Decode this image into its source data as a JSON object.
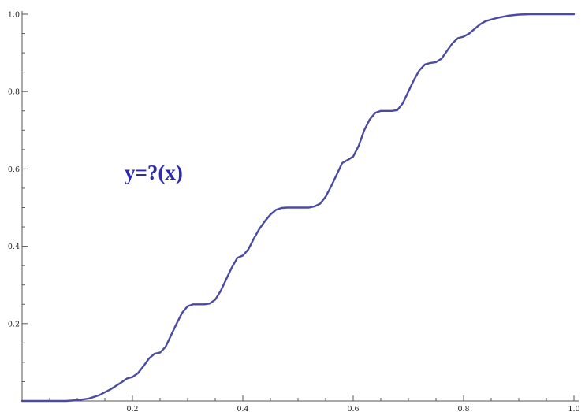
{
  "chart_data": {
    "type": "line",
    "title": "",
    "xlabel": "",
    "ylabel": "",
    "xlim": [
      0,
      1
    ],
    "ylim": [
      0,
      1
    ],
    "grid": false,
    "x_ticks_labeled": [
      0.2,
      0.4,
      0.6,
      0.8,
      1.0
    ],
    "x_tick_labels": [
      "0.2",
      "0.4",
      "0.6",
      "0.8",
      "1.0"
    ],
    "y_ticks_labeled": [
      0.2,
      0.4,
      0.6,
      0.8,
      1.0
    ],
    "y_tick_labels": [
      "0.2",
      "0.4",
      "0.6",
      "0.8",
      "1.0"
    ],
    "minor_tick_step": 0.05,
    "annotation": "y=?(x)",
    "series": [
      {
        "color": "#4b4ba0",
        "x": [
          0,
          0.08,
          0.1,
          0.12,
          0.14,
          0.16,
          0.18,
          0.19,
          0.2,
          0.21,
          0.22,
          0.23,
          0.24,
          0.25,
          0.26,
          0.27,
          0.28,
          0.29,
          0.3,
          0.31,
          0.32,
          0.33,
          0.34,
          0.35,
          0.36,
          0.37,
          0.38,
          0.39,
          0.4,
          0.41,
          0.42,
          0.43,
          0.44,
          0.45,
          0.46,
          0.47,
          0.48,
          0.5,
          0.52,
          0.53,
          0.54,
          0.55,
          0.56,
          0.57,
          0.58,
          0.59,
          0.6,
          0.61,
          0.62,
          0.63,
          0.64,
          0.65,
          0.66,
          0.67,
          0.68,
          0.69,
          0.7,
          0.71,
          0.72,
          0.73,
          0.74,
          0.75,
          0.76,
          0.77,
          0.78,
          0.79,
          0.8,
          0.81,
          0.82,
          0.83,
          0.84,
          0.86,
          0.88,
          0.9,
          0.92,
          0.95,
          1.0
        ],
        "y": [
          0,
          0.0,
          0.002,
          0.006,
          0.015,
          0.03,
          0.048,
          0.058,
          0.062,
          0.072,
          0.09,
          0.11,
          0.122,
          0.125,
          0.14,
          0.17,
          0.2,
          0.228,
          0.245,
          0.25,
          0.25,
          0.25,
          0.252,
          0.262,
          0.285,
          0.315,
          0.345,
          0.37,
          0.376,
          0.392,
          0.42,
          0.445,
          0.465,
          0.482,
          0.494,
          0.499,
          0.5,
          0.5,
          0.5,
          0.503,
          0.51,
          0.528,
          0.555,
          0.585,
          0.615,
          0.623,
          0.632,
          0.66,
          0.7,
          0.728,
          0.745,
          0.75,
          0.75,
          0.75,
          0.752,
          0.77,
          0.8,
          0.83,
          0.855,
          0.87,
          0.874,
          0.876,
          0.885,
          0.905,
          0.925,
          0.938,
          0.942,
          0.95,
          0.962,
          0.974,
          0.982,
          0.99,
          0.996,
          0.999,
          1.0,
          1.0,
          1.0
        ]
      }
    ]
  },
  "colors": {
    "curve": "#4b4ba0",
    "annotation": "#2b2bab",
    "axis": "#555555"
  }
}
